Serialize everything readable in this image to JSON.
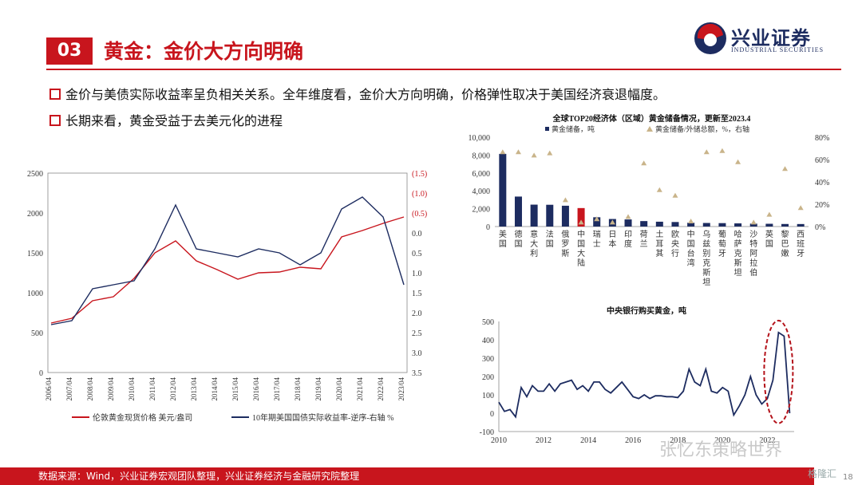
{
  "header": {
    "section_number": "03",
    "title": "黄金：金价大方向明确",
    "logo_name": "兴业证券",
    "logo_sub": "INDUSTRIAL SECURITIES"
  },
  "bullets": [
    "金价与美债实际收益率呈负相关关系。全年维度看，金价大方向明确，价格弹性取决于美国经济衰退幅度。",
    "长期来看，黄金受益于去美元化的进程"
  ],
  "colors": {
    "accent_red": "#c8151d",
    "navy": "#1d2c60",
    "gold_triangle": "#c9b48a"
  },
  "chart_data": [
    {
      "type": "line",
      "title": "",
      "x": [
        "2006/04",
        "2007/04",
        "2008/04",
        "2009/04",
        "2010/04",
        "2011/04",
        "2012/04",
        "2013/04",
        "2014/04",
        "2015/04",
        "2016/04",
        "2017/04",
        "2018/04",
        "2019/04",
        "2020/04",
        "2021/04",
        "2022/04",
        "2023/04"
      ],
      "ylim_left": [
        0,
        2500
      ],
      "yticks_left": [
        "0",
        "500",
        "1000",
        "1500",
        "2000",
        "2500"
      ],
      "ylim_right_reversed": [
        3.5,
        -1.5
      ],
      "yticks_right": [
        "(1.5)",
        "(1.0)",
        "(0.5)",
        "0.0",
        "0.5",
        "1.0",
        "1.5",
        "2.0",
        "2.5",
        "3.0",
        "3.5"
      ],
      "series": [
        {
          "name": "伦敦黄金现货价格 美元/盎司",
          "axis": "left",
          "color": "#c8151d",
          "values": [
            620,
            680,
            900,
            950,
            1180,
            1500,
            1650,
            1400,
            1290,
            1170,
            1250,
            1260,
            1320,
            1300,
            1700,
            1780,
            1870,
            1950
          ]
        },
        {
          "name": "10年期美国国债实际收益率-逆序-右轴 %",
          "axis": "right",
          "color": "#1d2c60",
          "values": [
            2.3,
            2.2,
            1.4,
            1.3,
            1.2,
            0.4,
            -0.7,
            0.4,
            0.5,
            0.6,
            0.4,
            0.5,
            0.8,
            0.5,
            -0.6,
            -0.9,
            -0.4,
            1.3
          ]
        }
      ]
    },
    {
      "type": "bar",
      "title": "全球TOP20经济体（区域）黄金储备情况，更新至2023.4",
      "categories": [
        "美国",
        "德国",
        "意大利",
        "法国",
        "俄罗斯",
        "中国大陆",
        "瑞士",
        "日本",
        "印度",
        "荷兰",
        "土耳其",
        "欧央行",
        "中国台湾",
        "乌兹别克斯坦",
        "葡萄牙",
        "哈萨克斯坦",
        "沙特阿拉伯",
        "英国",
        "黎巴嫩",
        "西班牙"
      ],
      "ylim_left": [
        0,
        10000
      ],
      "yticks_left": [
        "0",
        "2,000",
        "4,000",
        "6,000",
        "8,000",
        "10,000"
      ],
      "ylim_right": [
        0,
        80
      ],
      "yticks_right": [
        "0%",
        "20%",
        "40%",
        "60%",
        "80%"
      ],
      "series": [
        {
          "name": "黄金储备，吨",
          "axis": "left",
          "color": "#1d2c60",
          "values": [
            8133,
            3355,
            2452,
            2437,
            2330,
            2068,
            1040,
            846,
            795,
            612,
            542,
            507,
            424,
            400,
            383,
            355,
            323,
            310,
            287,
            282
          ]
        },
        {
          "name": "黄金储备/外储总额，%，右轴",
          "axis": "right",
          "color": "#c9b48a",
          "values": [
            67,
            67,
            64,
            66,
            24,
            4,
            7,
            4,
            9,
            57,
            33,
            28,
            5,
            67,
            68,
            58,
            4,
            11,
            52,
            17
          ]
        }
      ]
    },
    {
      "type": "line",
      "title": "中央银行购买黄金，吨",
      "x": [
        2010,
        2010.25,
        2010.5,
        2010.75,
        2011,
        2011.25,
        2011.5,
        2011.75,
        2012,
        2012.25,
        2012.5,
        2012.75,
        2013,
        2013.25,
        2013.5,
        2013.75,
        2014,
        2014.25,
        2014.5,
        2014.75,
        2015,
        2015.25,
        2015.5,
        2015.75,
        2016,
        2016.25,
        2016.5,
        2016.75,
        2017,
        2017.25,
        2017.5,
        2017.75,
        2018,
        2018.25,
        2018.5,
        2018.75,
        2019,
        2019.25,
        2019.5,
        2019.75,
        2020,
        2020.25,
        2020.5,
        2020.75,
        2021,
        2021.25,
        2021.5,
        2021.75,
        2022,
        2022.25,
        2022.5,
        2022.75,
        2023
      ],
      "values": [
        60,
        10,
        20,
        -20,
        140,
        90,
        150,
        120,
        120,
        160,
        120,
        160,
        170,
        180,
        130,
        150,
        120,
        170,
        170,
        130,
        110,
        140,
        170,
        130,
        90,
        80,
        100,
        80,
        95,
        95,
        90,
        90,
        85,
        120,
        240,
        170,
        150,
        240,
        120,
        110,
        140,
        120,
        -10,
        40,
        100,
        200,
        100,
        50,
        80,
        180,
        440,
        420,
        0
      ],
      "xticks": [
        "2010",
        "2012",
        "2014",
        "2016",
        "2018",
        "2020",
        "2022"
      ],
      "ylim": [
        -100,
        500
      ],
      "yticks": [
        "-100",
        "0",
        "100",
        "200",
        "300",
        "400",
        "500"
      ]
    }
  ],
  "footer": {
    "source": "数据来源：Wind，兴业证券宏观团队整理，兴业证券经济与金融研究院整理",
    "watermark": "张忆东策略世界",
    "watermark_logo": "格隆汇",
    "page_number": "18"
  }
}
